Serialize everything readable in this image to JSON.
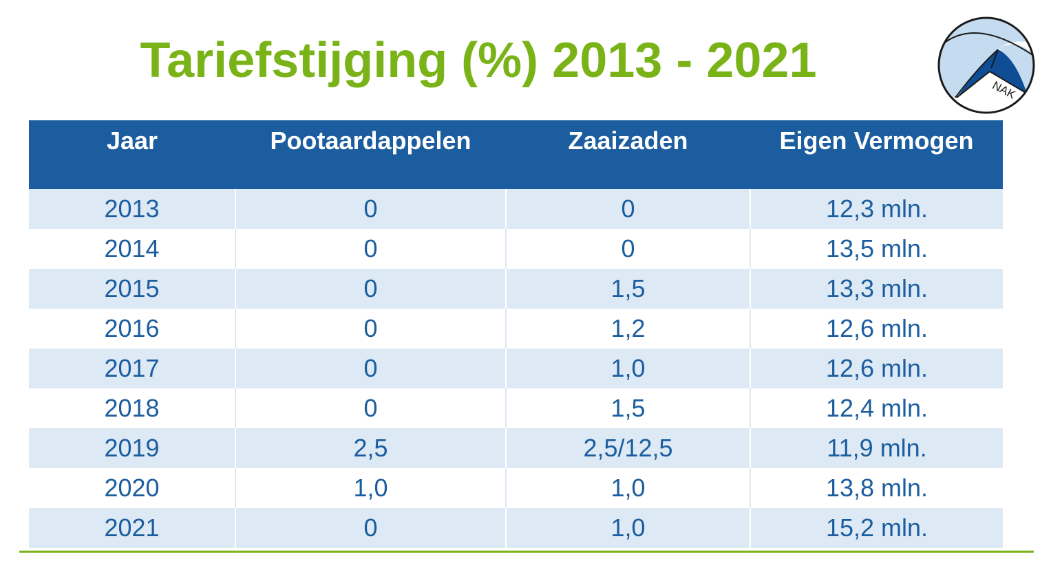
{
  "title": "Tariefstijging (%) 2013 - 2021",
  "logo": {
    "text": "NAK",
    "colors": {
      "light": "#c5dcf0",
      "dark": "#0f4d94",
      "outline": "#1a1a1a"
    }
  },
  "table": {
    "headers": [
      "Jaar",
      "Pootaardappelen",
      "Zaaizaden",
      "Eigen Vermogen"
    ],
    "rows": [
      [
        "2013",
        "0",
        "0",
        "12,3 mln."
      ],
      [
        "2014",
        "0",
        "0",
        "13,5 mln."
      ],
      [
        "2015",
        "0",
        "1,5",
        "13,3 mln."
      ],
      [
        "2016",
        "0",
        "1,2",
        "12,6 mln."
      ],
      [
        "2017",
        "0",
        "1,0",
        "12,6 mln."
      ],
      [
        "2018",
        "0",
        "1,5",
        "12,4 mln."
      ],
      [
        "2019",
        "2,5",
        "2,5/12,5",
        "11,9 mln."
      ],
      [
        "2020",
        "1,0",
        "1,0",
        "13,8 mln."
      ],
      [
        "2021",
        "0",
        "1,0",
        "15,2 mln."
      ]
    ]
  },
  "colors": {
    "title_green": "#7ab317",
    "header_blue": "#1b5d9e",
    "row_stripe": "#dde9f5",
    "text_blue": "#1b5d9e"
  }
}
